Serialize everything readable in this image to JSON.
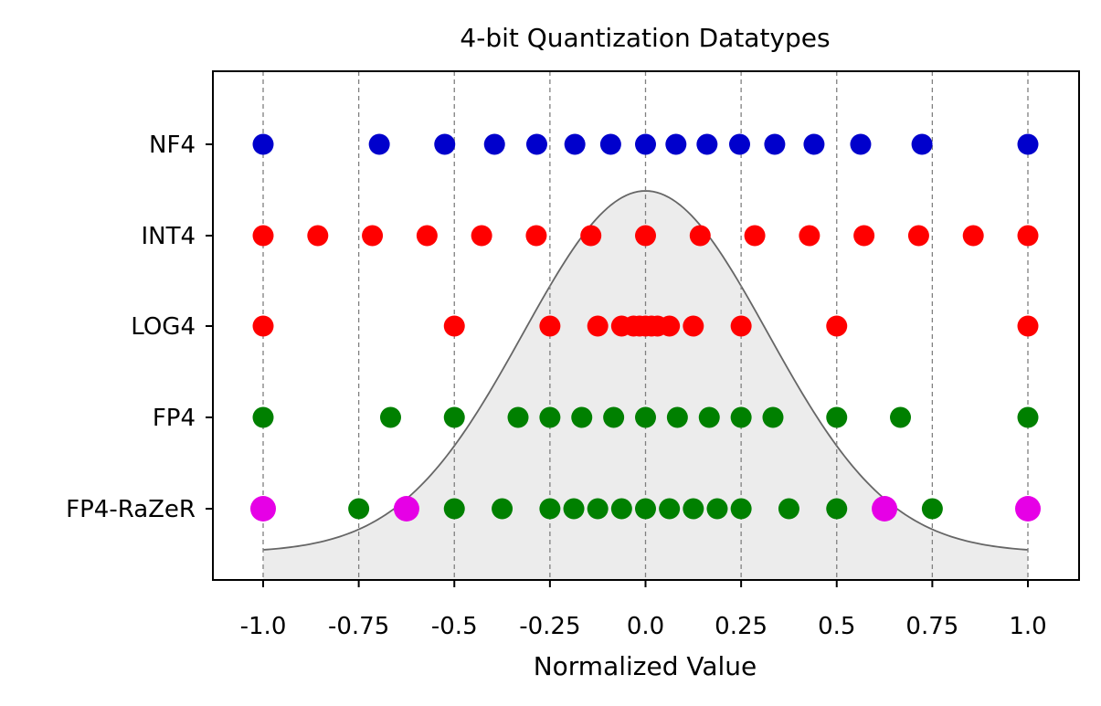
{
  "chart_data": {
    "type": "scatter",
    "title": "4-bit Quantization Datatypes",
    "xlabel": "Normalized Value",
    "ylabel": "",
    "xlim": [
      -1.13,
      1.13
    ],
    "grid": "vertical dashed lines at x ticks",
    "x_ticks": [
      -1.0,
      -0.75,
      -0.5,
      -0.25,
      0.0,
      0.25,
      0.5,
      0.75,
      1.0
    ],
    "x_tick_labels": [
      "-1.0",
      "-0.75",
      "-0.5",
      "-0.25",
      "0.0",
      "0.25",
      "0.5",
      "0.75",
      "1.0"
    ],
    "categories": [
      "NF4",
      "INT4",
      "LOG4",
      "FP4",
      "FP4-RaZeR"
    ],
    "background_curve": {
      "shape": "gaussian",
      "x_range": [
        -1.0,
        1.0
      ],
      "sigma": 0.32,
      "line_color": "#666666",
      "fill_color": "#ececec"
    },
    "series": [
      {
        "category": "NF4",
        "color": "#0000cc",
        "x": [
          -1.0,
          -0.6962,
          -0.5251,
          -0.3949,
          -0.2844,
          -0.1848,
          -0.0911,
          0.0,
          0.0796,
          0.1609,
          0.2461,
          0.3379,
          0.4407,
          0.5626,
          0.723,
          1.0
        ]
      },
      {
        "category": "INT4",
        "color": "#ff0000",
        "x": [
          -1.0,
          -0.8571,
          -0.7143,
          -0.5714,
          -0.4286,
          -0.2857,
          -0.1429,
          0.0,
          0.1429,
          0.2857,
          0.4286,
          0.5714,
          0.7143,
          0.8571,
          1.0
        ]
      },
      {
        "category": "LOG4",
        "color": "#ff0000",
        "x": [
          -1.0,
          -0.5,
          -0.25,
          -0.125,
          -0.0625,
          -0.03125,
          -0.015625,
          0.0,
          0.015625,
          0.03125,
          0.0625,
          0.125,
          0.25,
          0.5,
          1.0
        ]
      },
      {
        "category": "FP4",
        "color": "#008000",
        "x": [
          -1.0,
          -0.6667,
          -0.5,
          -0.3333,
          -0.25,
          -0.1667,
          -0.0833,
          0.0,
          0.0833,
          0.1667,
          0.25,
          0.3333,
          0.5,
          0.6667,
          1.0
        ]
      },
      {
        "category": "FP4-RaZeR",
        "color": "#008000",
        "x": [
          -0.75,
          -0.5,
          -0.375,
          -0.25,
          -0.1875,
          -0.125,
          -0.0625,
          0.0,
          0.0625,
          0.125,
          0.1875,
          0.25,
          0.375,
          0.5,
          0.75
        ]
      },
      {
        "category": "FP4-RaZeR",
        "color": "#e600e6",
        "special": true,
        "x": [
          -1.0,
          -0.625,
          0.625,
          1.0
        ]
      }
    ]
  }
}
